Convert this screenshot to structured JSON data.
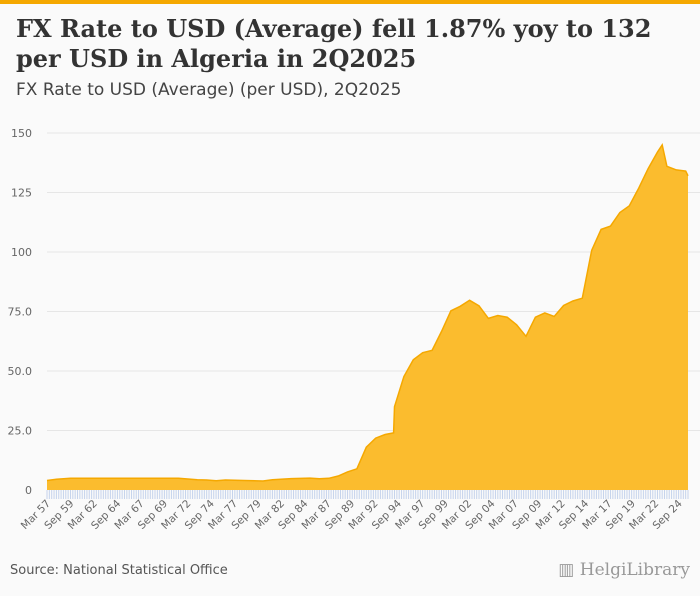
{
  "title": "FX Rate to USD (Average) fell 1.87% yoy to 132 per USD in Algeria in 2Q2025",
  "subtitle": "FX Rate to USD (Average) (per USD), 2Q2025",
  "source": "Source: National Statistical Office",
  "logo": "HelgiLibrary",
  "chart_data": {
    "type": "area",
    "title": "FX Rate to USD (Average) (per USD), 2Q2025",
    "xlabel": "",
    "ylabel": "",
    "ylim": [
      0,
      150
    ],
    "yticks": [
      {
        "v": 0,
        "label": "0"
      },
      {
        "v": 25,
        "label": "25.0"
      },
      {
        "v": 50,
        "label": "50.0"
      },
      {
        "v": 75,
        "label": "75.0"
      },
      {
        "v": 100,
        "label": "100"
      },
      {
        "v": 125,
        "label": "125"
      },
      {
        "v": 150,
        "label": "150"
      }
    ],
    "xlim": [
      1957,
      2025.25
    ],
    "xticks": [
      "Mar 57",
      "Sep 59",
      "Mar 62",
      "Sep 64",
      "Mar 67",
      "Sep 69",
      "Mar 72",
      "Sep 74",
      "Mar 77",
      "Sep 79",
      "Mar 82",
      "Sep 84",
      "Mar 87",
      "Sep 89",
      "Mar 92",
      "Sep 94",
      "Mar 97",
      "Sep 99",
      "Mar 02",
      "Sep 04",
      "Mar 07",
      "Sep 09",
      "Mar 12",
      "Sep 14",
      "Mar 17",
      "Sep 19",
      "Mar 22",
      "Sep 24"
    ],
    "color": "#fbbc2e",
    "x": [
      1957,
      1958,
      1959.5,
      1965,
      1971,
      1973,
      1974,
      1975,
      1976,
      1978,
      1980,
      1981,
      1983,
      1985,
      1986,
      1987,
      1988,
      1989,
      1990,
      1991,
      1992,
      1993,
      1993.9,
      1994,
      1995,
      1996,
      1997,
      1998,
      1999,
      2000,
      2001,
      2002,
      2003,
      2004,
      2005,
      2006,
      2007,
      2008,
      2009,
      2010,
      2011,
      2012,
      2013,
      2014,
      2015,
      2016,
      2017,
      2018,
      2019,
      2020,
      2021,
      2022,
      2022.5,
      2023,
      2024,
      2025,
      2025.25
    ],
    "values": [
      4,
      4.5,
      4.9,
      4.94,
      4.9,
      4.3,
      4.2,
      3.9,
      4.2,
      4,
      3.8,
      4.3,
      4.8,
      5,
      4.7,
      4.9,
      5.9,
      7.6,
      8.9,
      18,
      21.8,
      23.3,
      24,
      35,
      47.7,
      54.7,
      57.7,
      58.7,
      66.6,
      75.3,
      77.2,
      79.7,
      77.4,
      72.1,
      73.3,
      72.6,
      69.4,
      64.6,
      72.6,
      74.4,
      72.9,
      77.5,
      79.4,
      80.6,
      100.7,
      109.5,
      110.9,
      116.6,
      119.4,
      126.8,
      135,
      142,
      145,
      136,
      134.5,
      134,
      132
    ],
    "grid": true,
    "legend": "none"
  }
}
